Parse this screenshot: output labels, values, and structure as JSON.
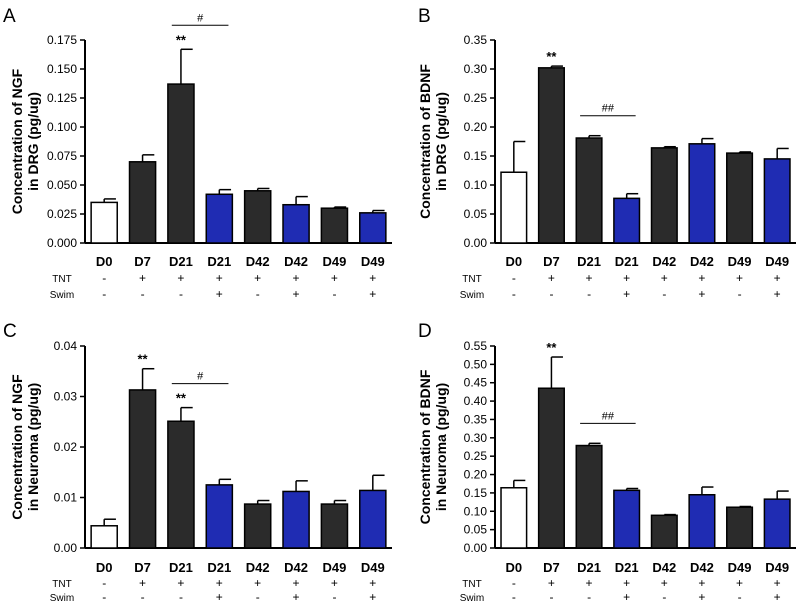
{
  "chart_data": [
    {
      "panel": "A",
      "type": "bar",
      "ylabel": [
        "Concentration of NGF",
        "in DRG (pg/ug)"
      ],
      "ylim": [
        0,
        0.175
      ],
      "yticks": [
        "0.000",
        "0.025",
        "0.050",
        "0.075",
        "0.100",
        "0.125",
        "0.150",
        "0.175"
      ],
      "categories": [
        "D0",
        "D7",
        "D21",
        "D21",
        "D42",
        "D42",
        "D49",
        "D49"
      ],
      "values": [
        0.035,
        0.07,
        0.137,
        0.042,
        0.045,
        0.033,
        0.03,
        0.026
      ],
      "errors": [
        0.003,
        0.006,
        0.03,
        0.004,
        0.002,
        0.007,
        0.001,
        0.002
      ],
      "groups": [
        "control",
        "tnt",
        "tnt",
        "swim",
        "tnt",
        "swim",
        "tnt",
        "swim"
      ],
      "row_labels": [
        "TNT",
        "Swim"
      ],
      "tnt": [
        "-",
        "+",
        "+",
        "+",
        "+",
        "+",
        "+",
        "+"
      ],
      "swim": [
        "-",
        "-",
        "-",
        "+",
        "-",
        "+",
        "-",
        "+"
      ],
      "significance": [
        {
          "bar": 2,
          "label": "**"
        }
      ],
      "brackets": [
        {
          "from": 2,
          "to": 3,
          "label": "#"
        }
      ]
    },
    {
      "panel": "B",
      "type": "bar",
      "ylabel": [
        "Concentration of BDNF",
        "in DRG (pg/ug)"
      ],
      "ylim": [
        0,
        0.35
      ],
      "yticks": [
        "0.00",
        "0.05",
        "0.10",
        "0.15",
        "0.20",
        "0.25",
        "0.30",
        "0.35"
      ],
      "categories": [
        "D0",
        "D7",
        "D21",
        "D21",
        "D42",
        "D42",
        "D49",
        "D49"
      ],
      "values": [
        0.122,
        0.302,
        0.181,
        0.077,
        0.164,
        0.171,
        0.155,
        0.145
      ],
      "errors": [
        0.053,
        0.003,
        0.004,
        0.008,
        0.002,
        0.009,
        0.002,
        0.018
      ],
      "groups": [
        "control",
        "tnt",
        "tnt",
        "swim",
        "tnt",
        "swim",
        "tnt",
        "swim"
      ],
      "row_labels": [
        "TNT",
        "Swim"
      ],
      "tnt": [
        "-",
        "+",
        "+",
        "+",
        "+",
        "+",
        "+",
        "+"
      ],
      "swim": [
        "-",
        "-",
        "-",
        "+",
        "-",
        "+",
        "-",
        "+"
      ],
      "significance": [
        {
          "bar": 1,
          "label": "**"
        }
      ],
      "brackets": [
        {
          "from": 2,
          "to": 3,
          "label": "##"
        }
      ]
    },
    {
      "panel": "C",
      "type": "bar",
      "ylabel": [
        "Concentration of NGF",
        "in Neuroma (pg/ug)"
      ],
      "ylim": [
        0,
        0.04
      ],
      "yticks": [
        "0.00",
        "0.01",
        "0.02",
        "0.03",
        "0.04"
      ],
      "categories": [
        "D0",
        "D7",
        "D21",
        "D21",
        "D42",
        "D42",
        "D49",
        "D49"
      ],
      "values": [
        0.0044,
        0.0313,
        0.0251,
        0.0125,
        0.0087,
        0.0112,
        0.0087,
        0.0114
      ],
      "errors": [
        0.0013,
        0.0042,
        0.0027,
        0.0011,
        0.0007,
        0.0021,
        0.0007,
        0.003
      ],
      "groups": [
        "control",
        "tnt",
        "tnt",
        "swim",
        "tnt",
        "swim",
        "tnt",
        "swim"
      ],
      "row_labels": [
        "TNT",
        "Swim"
      ],
      "tnt": [
        "-",
        "+",
        "+",
        "+",
        "+",
        "+",
        "+",
        "+"
      ],
      "swim": [
        "-",
        "-",
        "-",
        "+",
        "-",
        "+",
        "-",
        "+"
      ],
      "significance": [
        {
          "bar": 1,
          "label": "**"
        },
        {
          "bar": 2,
          "label": "**"
        }
      ],
      "brackets": [
        {
          "from": 2,
          "to": 3,
          "label": "#"
        }
      ]
    },
    {
      "panel": "D",
      "type": "bar",
      "ylabel": [
        "Concentration of BDNF",
        "in Neuroma (pg/ug)"
      ],
      "ylim": [
        0,
        0.55
      ],
      "yticks": [
        "0.00",
        "0.05",
        "0.10",
        "0.15",
        "0.20",
        "0.25",
        "0.30",
        "0.35",
        "0.40",
        "0.45",
        "0.50",
        "0.55"
      ],
      "categories": [
        "D0",
        "D7",
        "D21",
        "D21",
        "D42",
        "D42",
        "D49",
        "D49"
      ],
      "values": [
        0.164,
        0.435,
        0.279,
        0.157,
        0.089,
        0.145,
        0.111,
        0.133
      ],
      "errors": [
        0.02,
        0.085,
        0.006,
        0.005,
        0.002,
        0.021,
        0.002,
        0.022
      ],
      "groups": [
        "control",
        "tnt",
        "tnt",
        "swim",
        "tnt",
        "swim",
        "tnt",
        "swim"
      ],
      "row_labels": [
        "TNT",
        "Swim"
      ],
      "tnt": [
        "-",
        "+",
        "+",
        "+",
        "+",
        "+",
        "+",
        "+"
      ],
      "swim": [
        "-",
        "-",
        "-",
        "+",
        "-",
        "+",
        "-",
        "+"
      ],
      "significance": [
        {
          "bar": 1,
          "label": "**"
        }
      ],
      "brackets": [
        {
          "from": 2,
          "to": 3,
          "label": "##"
        }
      ]
    }
  ],
  "colors": {
    "control": "#ffffff",
    "tnt": "#2b2b2b",
    "swim": "#1f2cb3",
    "axis": "#000000"
  }
}
